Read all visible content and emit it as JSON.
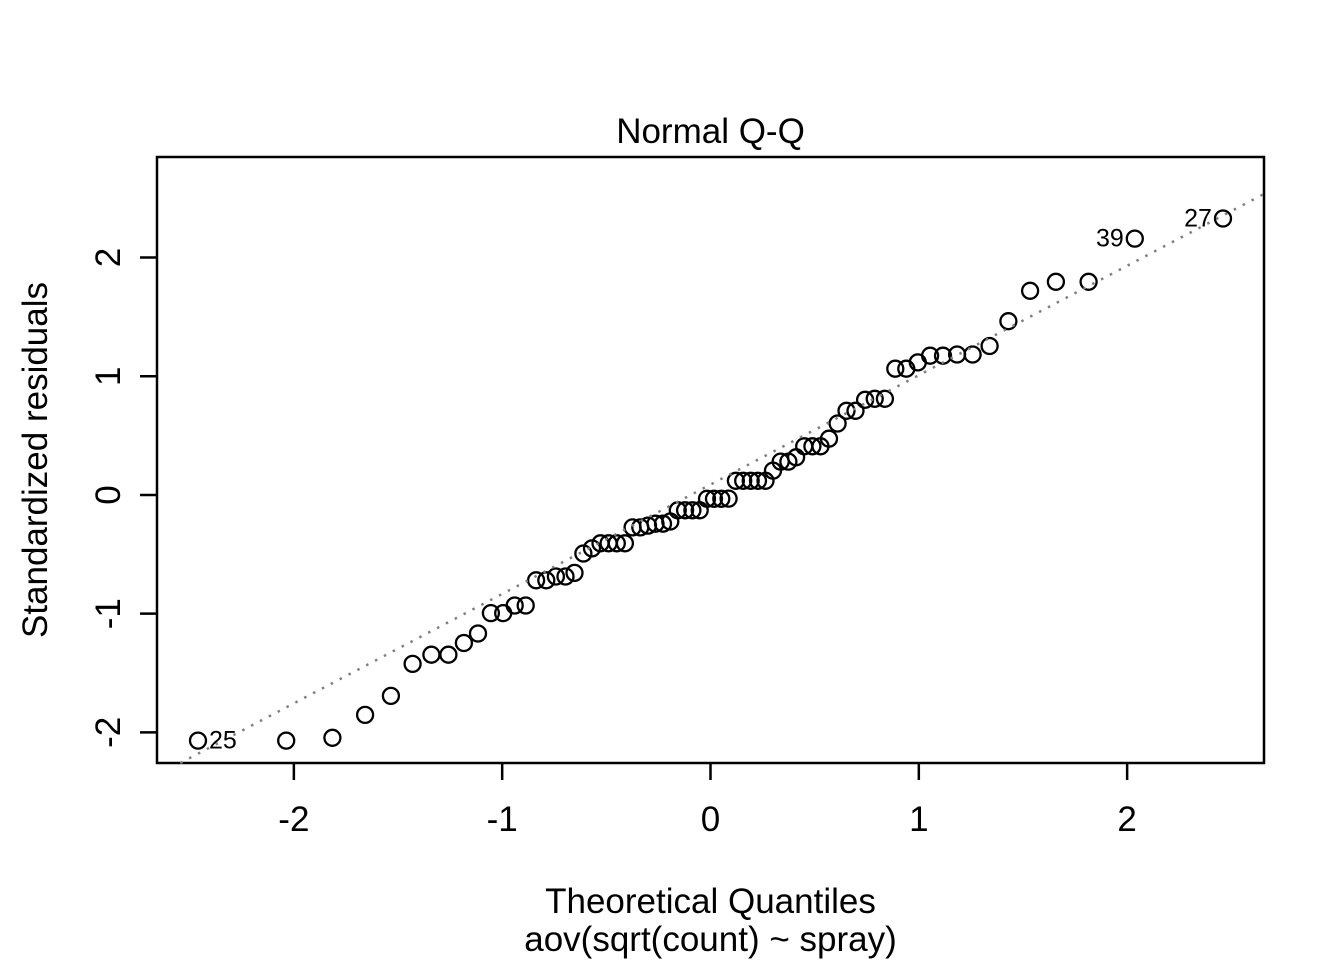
{
  "chart_data": {
    "type": "scatter",
    "subtype": "normal-qq-plot",
    "title": "Normal Q-Q",
    "xlabel": "Theoretical Quantiles",
    "sublabel": "aov(sqrt(count) ~ spray)",
    "ylabel": "Standardized residuals",
    "x_ticks": [
      -2,
      -1,
      0,
      1,
      2
    ],
    "y_ticks": [
      -2,
      -1,
      0,
      1,
      2
    ],
    "xlim": [
      -2.657,
      2.657
    ],
    "ylim": [
      -2.258,
      2.847
    ],
    "grid": false,
    "legend": null,
    "marker": "open-circle",
    "colors": {
      "points": "#000000",
      "ref_line": "#7f7f7f",
      "text": "#000000",
      "background": "#ffffff"
    },
    "ref_line": {
      "type": "qqline-through-quartiles",
      "slope": 0.9215,
      "intercept": 0.0875,
      "style": "dotted"
    },
    "points": {
      "x": [
        -2.46,
        -2.037,
        -1.815,
        -1.658,
        -1.534,
        -1.43,
        -1.34,
        -1.258,
        -1.184,
        -1.116,
        -1.054,
        -0.995,
        -0.94,
        -0.887,
        -0.837,
        -0.788,
        -0.742,
        -0.696,
        -0.653,
        -0.61,
        -0.569,
        -0.528,
        -0.489,
        -0.45,
        -0.411,
        -0.374,
        -0.337,
        -0.3,
        -0.264,
        -0.228,
        -0.193,
        -0.157,
        -0.122,
        -0.087,
        -0.052,
        -0.017,
        0.017,
        0.052,
        0.087,
        0.122,
        0.157,
        0.193,
        0.228,
        0.264,
        0.3,
        0.337,
        0.374,
        0.411,
        0.45,
        0.489,
        0.528,
        0.569,
        0.61,
        0.653,
        0.696,
        0.742,
        0.788,
        0.837,
        0.887,
        0.94,
        0.995,
        1.054,
        1.116,
        1.184,
        1.258,
        1.34,
        1.43,
        1.534,
        1.658,
        1.815,
        2.037,
        2.46
      ],
      "y": [
        -2.069,
        -2.069,
        -2.046,
        -1.853,
        -1.693,
        -1.423,
        -1.346,
        -1.346,
        -1.247,
        -1.167,
        -0.995,
        -0.995,
        -0.931,
        -0.931,
        -0.719,
        -0.719,
        -0.687,
        -0.687,
        -0.657,
        -0.493,
        -0.45,
        -0.407,
        -0.407,
        -0.407,
        -0.407,
        -0.273,
        -0.273,
        -0.258,
        -0.242,
        -0.242,
        -0.224,
        -0.129,
        -0.129,
        -0.129,
        -0.129,
        -0.032,
        -0.032,
        -0.032,
        -0.031,
        0.119,
        0.119,
        0.119,
        0.119,
        0.119,
        0.205,
        0.281,
        0.281,
        0.317,
        0.41,
        0.41,
        0.41,
        0.474,
        0.602,
        0.709,
        0.709,
        0.802,
        0.81,
        0.81,
        1.064,
        1.064,
        1.117,
        1.173,
        1.173,
        1.183,
        1.183,
        1.255,
        1.464,
        1.72,
        1.796,
        1.796,
        2.16,
        2.329
      ]
    },
    "labeled_points": [
      {
        "id": "25",
        "x": -2.46,
        "y": -2.069,
        "label_side": "right"
      },
      {
        "id": "39",
        "x": 2.037,
        "y": 2.16,
        "label_side": "left"
      },
      {
        "id": "27",
        "x": 2.46,
        "y": 2.329,
        "label_side": "left"
      }
    ]
  }
}
